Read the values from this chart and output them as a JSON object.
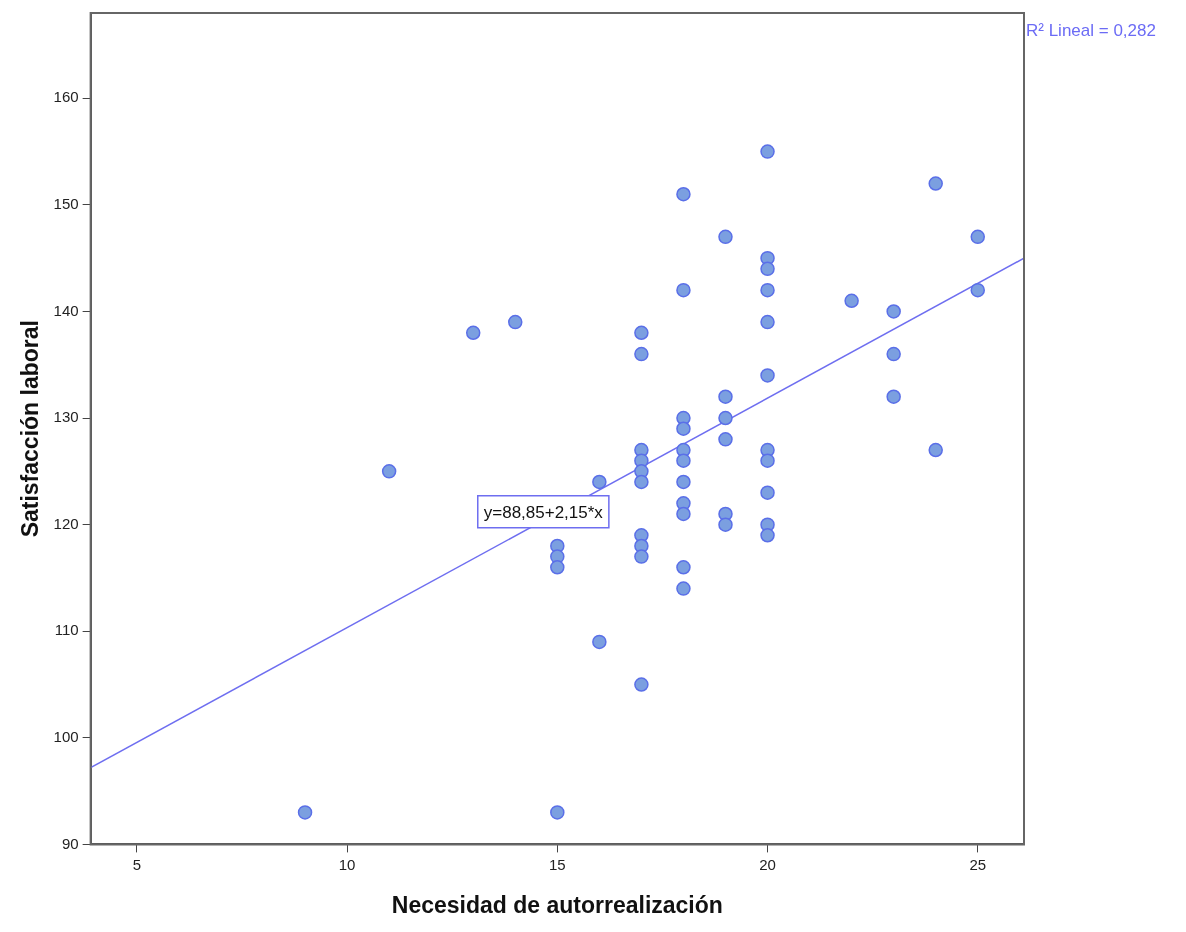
{
  "chart_data": {
    "type": "scatter",
    "xlabel": "Necesidad de autorrealización",
    "ylabel": "Satisfacción laboral",
    "xlim": [
      3.9,
      26.1
    ],
    "xticks": [
      5,
      10,
      15,
      20,
      25
    ],
    "ylim": [
      90,
      168
    ],
    "yticks": [
      90,
      100,
      110,
      120,
      130,
      140,
      150,
      160
    ],
    "grid": false,
    "legend": false,
    "marker": "circle",
    "series": [
      {
        "color": "#7b9fe0",
        "x": [
          9,
          11,
          13,
          14,
          15,
          15,
          15,
          15,
          16,
          16,
          17,
          17,
          17,
          17,
          17,
          17,
          17,
          17,
          17,
          17,
          18,
          18,
          18,
          18,
          18,
          18,
          18,
          18,
          18,
          18,
          18,
          19,
          19,
          19,
          19,
          19,
          19,
          20,
          20,
          20,
          20,
          20,
          20,
          20,
          20,
          20,
          20,
          20,
          22,
          23,
          23,
          23,
          24,
          24,
          25,
          25
        ],
        "values": [
          93,
          125,
          138,
          139,
          118,
          117,
          116,
          93,
          124,
          109,
          138,
          136,
          127,
          126,
          125,
          124,
          119,
          118,
          117,
          105,
          151,
          142,
          130,
          129,
          127,
          126,
          124,
          122,
          121,
          116,
          114,
          147,
          132,
          130,
          128,
          121,
          120,
          155,
          145,
          144,
          142,
          139,
          134,
          127,
          126,
          123,
          120,
          119,
          141,
          140,
          136,
          132,
          152,
          127,
          147,
          142
        ]
      },
      {
        "type": "line",
        "marker": "none",
        "color": "#6e6ef0",
        "x": [
          3.9,
          26.1
        ],
        "values": [
          97.2,
          145.0
        ]
      }
    ],
    "annotations": [
      "y=88,85+2,15*x",
      "R² Lineal = 0,282"
    ]
  }
}
